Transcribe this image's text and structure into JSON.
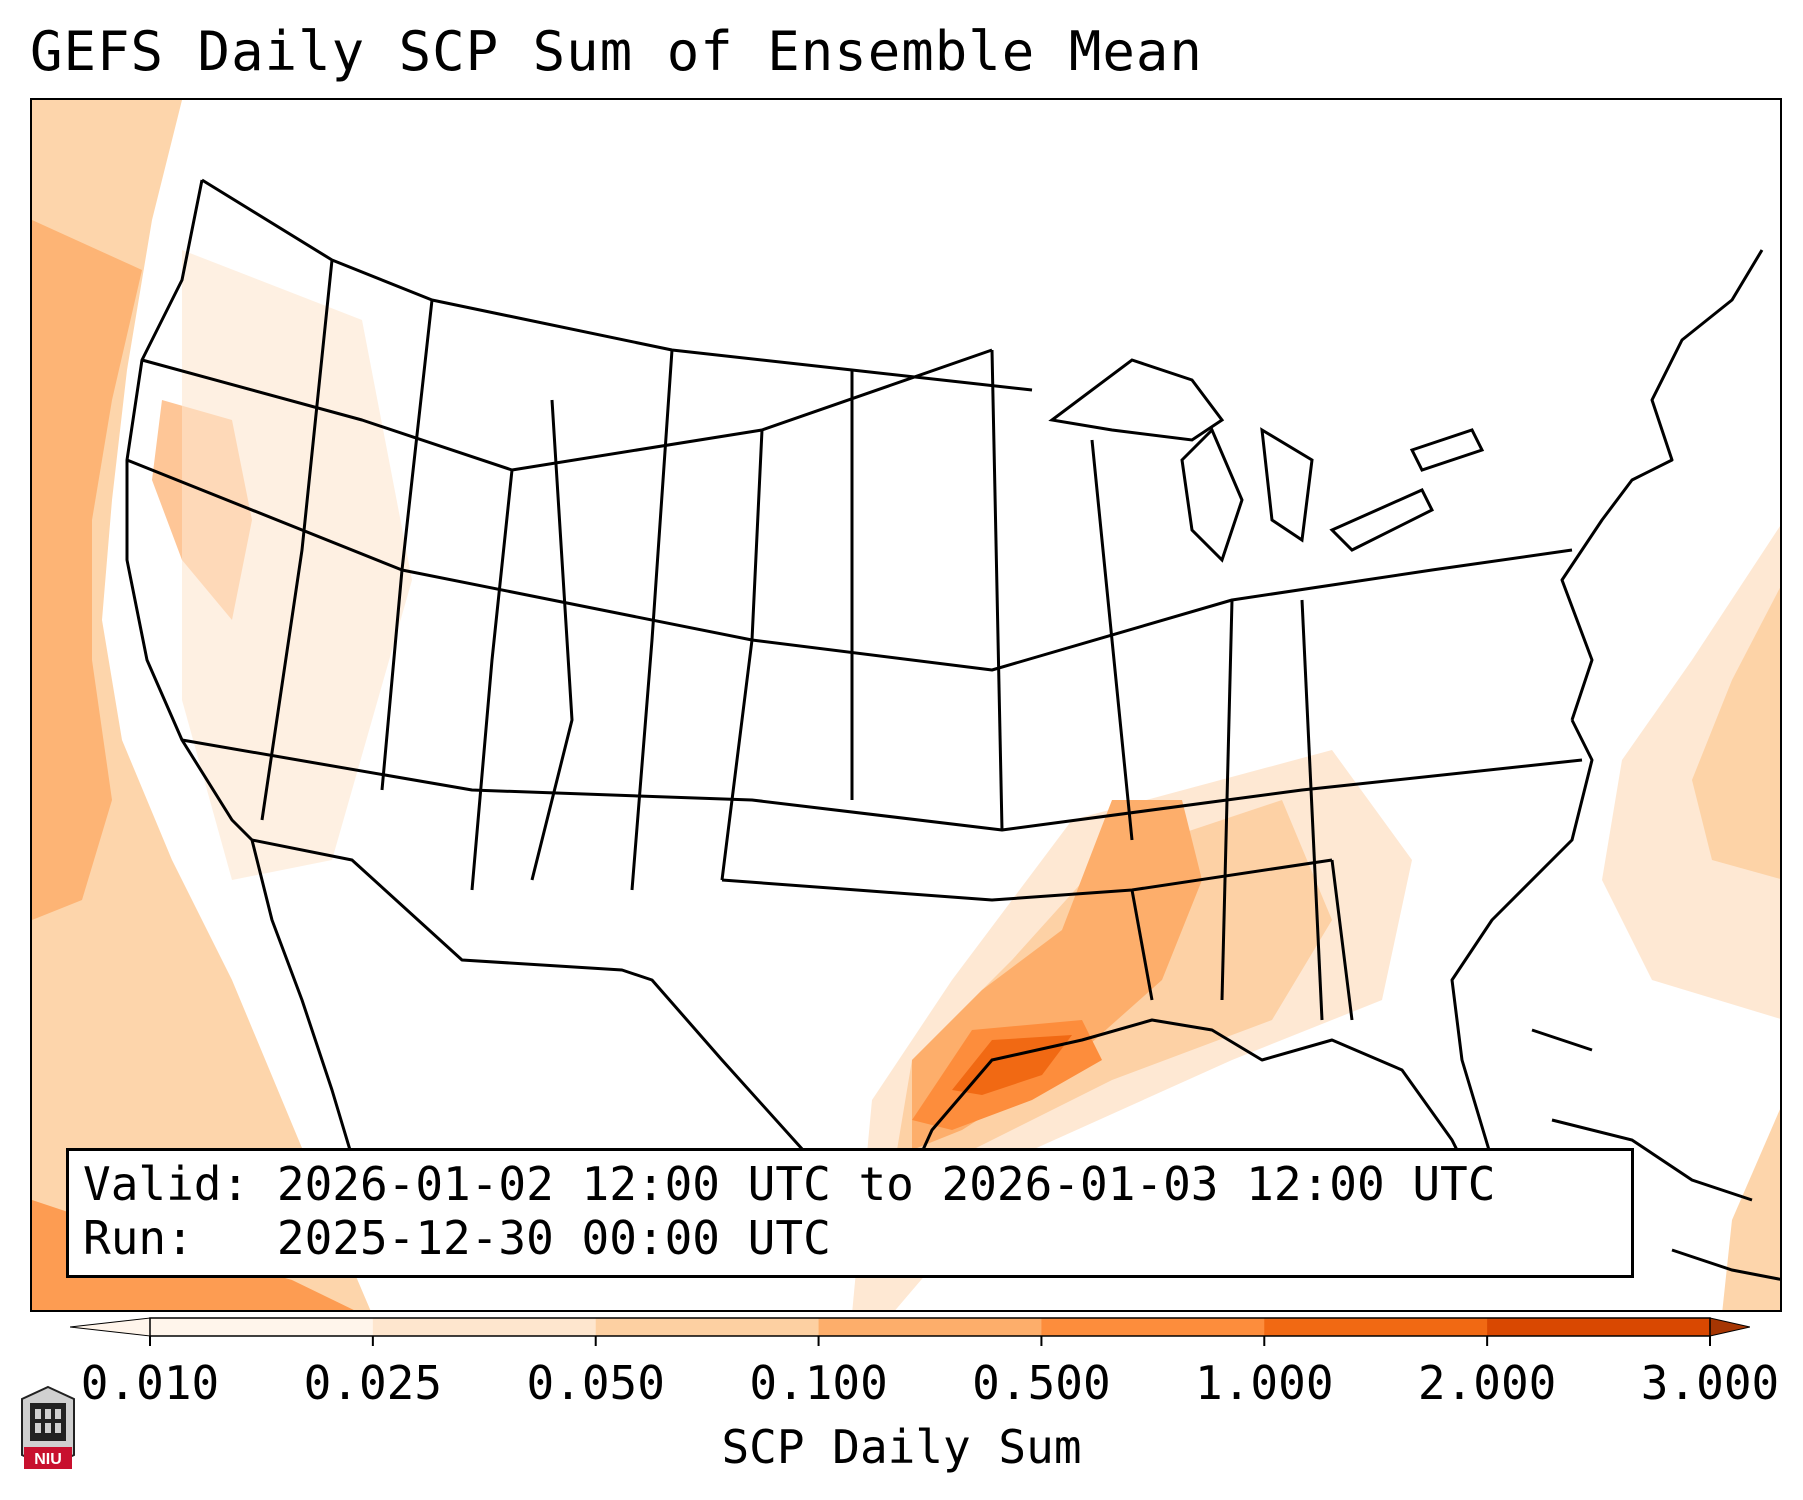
{
  "title": "GEFS Daily SCP Sum of Ensemble Mean",
  "info": {
    "valid_label": "Valid:",
    "valid_value": "2026-01-02 12:00 UTC to 2026-01-03 12:00 UTC",
    "run_label": "Run:",
    "run_value": "2025-12-30 00:00 UTC"
  },
  "colorbar": {
    "label": "SCP Daily Sum",
    "ticks": [
      "0.010",
      "0.025",
      "0.050",
      "0.100",
      "0.500",
      "1.000",
      "2.000",
      "3.000"
    ],
    "colors": [
      "#fff5eb",
      "#fee6ce",
      "#fdd0a2",
      "#fdae6b",
      "#fd8d3c",
      "#f16913",
      "#d94801",
      "#a63603"
    ],
    "extend": "both"
  },
  "logo": {
    "text": "NIU",
    "icon": "niu-university-logo-icon"
  },
  "map": {
    "projection": "Lambert conformal, CONUS",
    "features": [
      "coastlines",
      "state-borders",
      "country-borders",
      "great-lakes"
    ]
  }
}
